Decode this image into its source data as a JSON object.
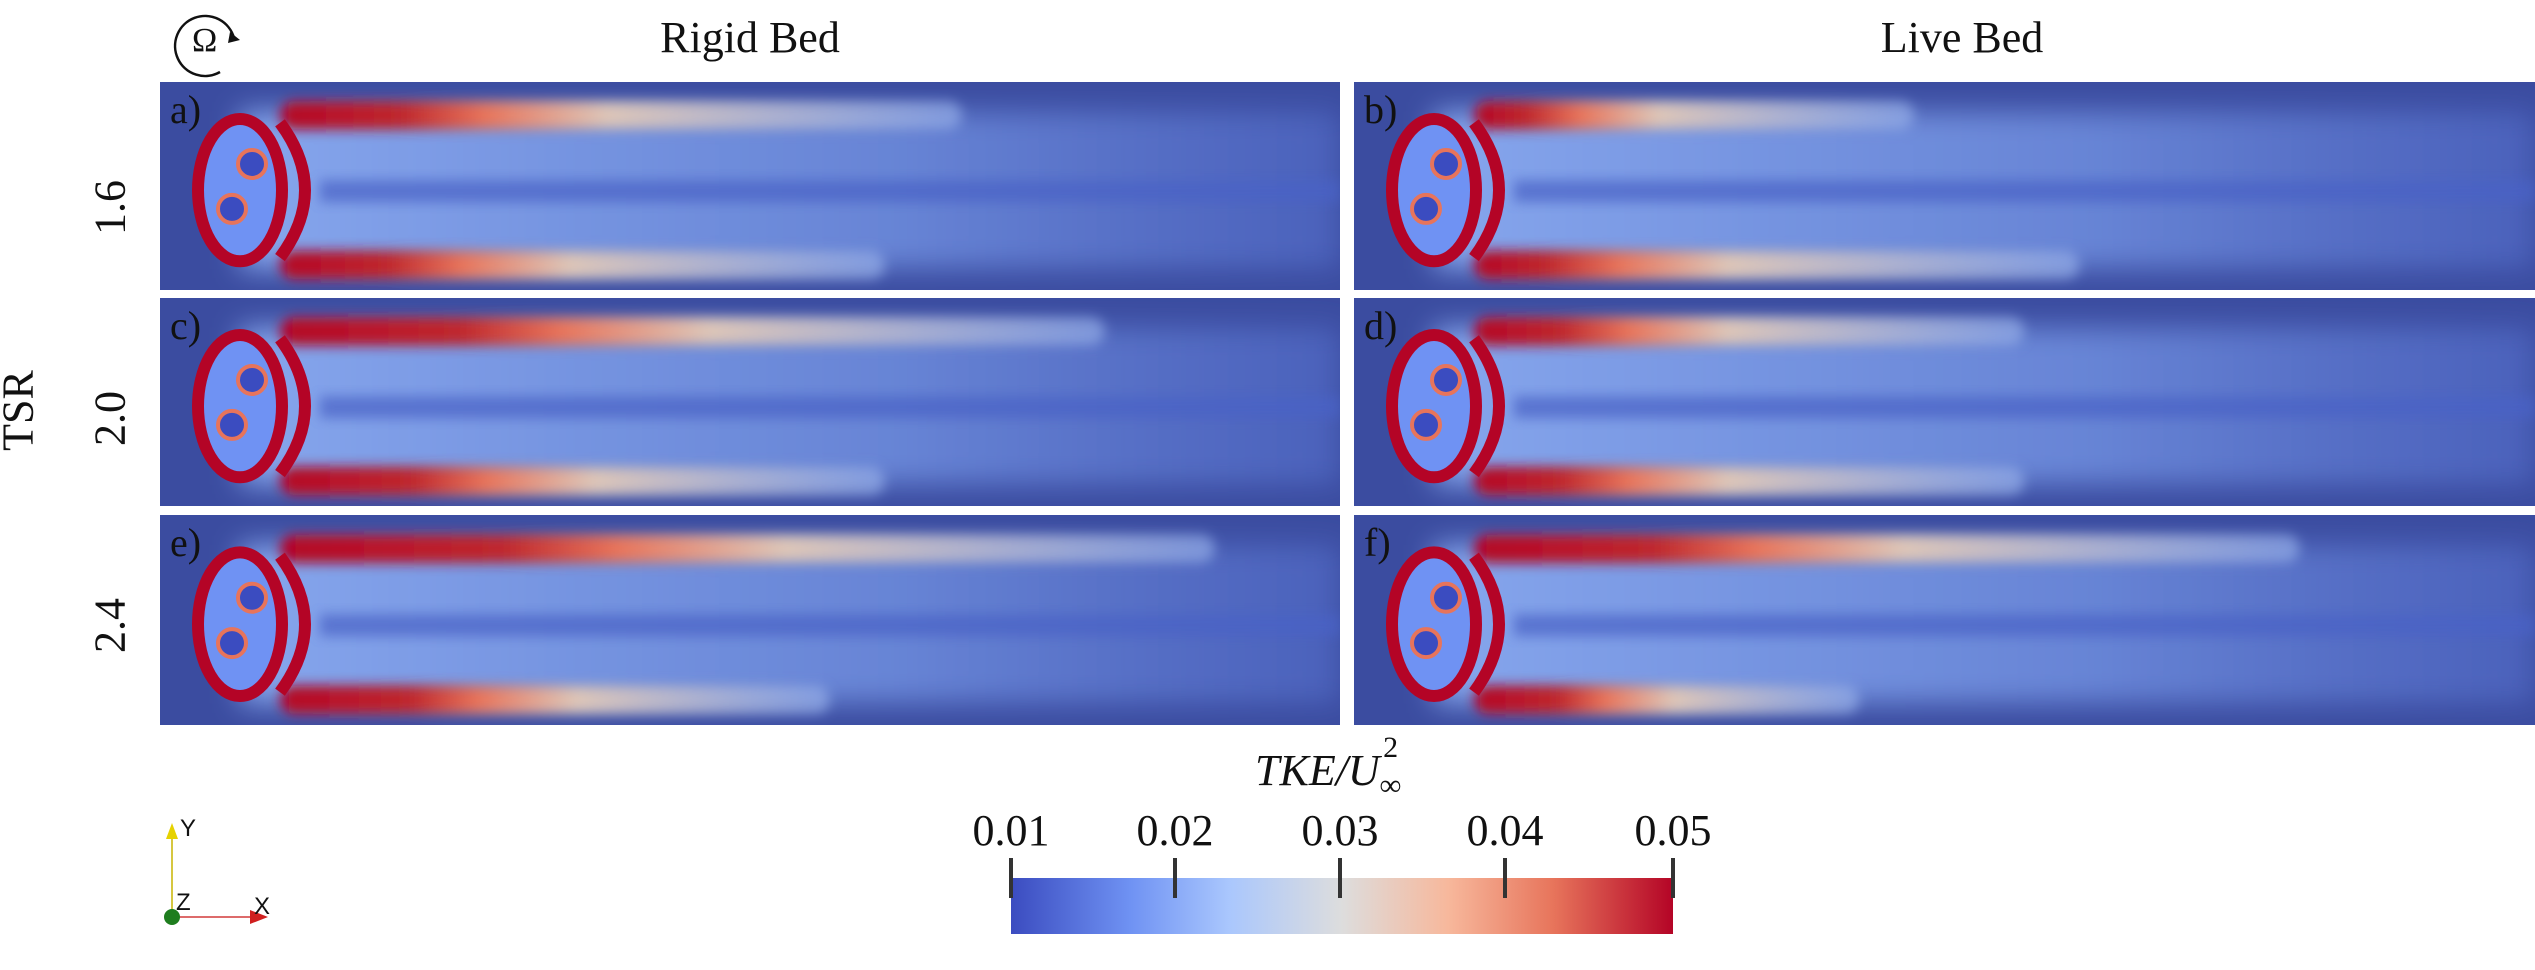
{
  "columns": [
    "Rigid Bed",
    "Live Bed"
  ],
  "row_axis_label": "TSR",
  "rows": [
    "1.6",
    "2.0",
    "2.4"
  ],
  "panel_labels": [
    "a)",
    "b)",
    "c)",
    "d)",
    "e)",
    "f)"
  ],
  "rotation_symbol": "Ω",
  "colorbar": {
    "title": "TKE/U",
    "title_sub": "∞",
    "title_sup": "2",
    "ticks": [
      "0.01",
      "0.02",
      "0.03",
      "0.04",
      "0.05"
    ],
    "colors": {
      "low": "#3b4cc0",
      "mid": "#dddddd",
      "high": "#b40426"
    }
  },
  "axes_triad": {
    "y": "Y",
    "z": "Z",
    "x": "X"
  }
}
